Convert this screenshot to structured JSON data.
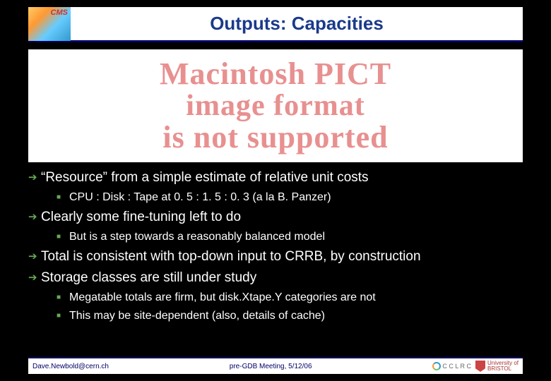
{
  "header": {
    "logo_text": "CMS",
    "title": "Outputs: Capacities"
  },
  "pict_banner": {
    "line1": "Macintosh PICT",
    "line2": "image format",
    "line3": "is not supported"
  },
  "bullets": [
    {
      "text": "“Resource” from a simple estimate of relative unit costs",
      "subs": [
        "CPU : Disk : Tape at 0. 5 : 1. 5 : 0. 3 (a la B. Panzer)"
      ]
    },
    {
      "text": "Clearly some fine-tuning left to do",
      "subs": [
        "But is a step towards a reasonably balanced model"
      ]
    },
    {
      "text": "Total is consistent with top-down input to CRRB, by construction",
      "subs": []
    },
    {
      "text": "Storage classes are still under study",
      "subs": [
        "Megatable totals are firm, but disk.Xtape.Y categories are not",
        "This may be site-dependent (also, details of cache)"
      ]
    }
  ],
  "footer": {
    "left": "Dave.Newbold@cern.ch",
    "center": "pre-GDB Meeting, 5/12/06",
    "cclrc": "C C L R C",
    "bristol_line1": "University of",
    "bristol_line2": "BRISTOL"
  },
  "colors": {
    "background": "#000000",
    "title_color": "#1a3a8a",
    "accent_green": "#66aa55",
    "text_white": "#ffffff",
    "header_border": "#000066",
    "pict_text": "#e89090"
  },
  "typography": {
    "title_fontsize": 26,
    "bullet_fontsize": 19,
    "sub_bullet_fontsize": 16,
    "footer_fontsize": 10,
    "pict_fontsize": 44
  }
}
